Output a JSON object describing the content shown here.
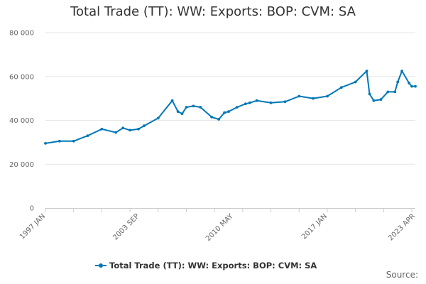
{
  "chart_data": {
    "type": "line",
    "title": "Total Trade (TT): WW: Exports: BOP: CVM: SA",
    "xlabel": "",
    "ylabel": "",
    "ylim": [
      0,
      80000
    ],
    "y_ticks": [
      0,
      20000,
      40000,
      60000,
      80000
    ],
    "y_tick_labels": [
      "0",
      "20 000",
      "40 000",
      "60 000",
      "80 000"
    ],
    "x_period_start": "1997 JAN",
    "x_period_end": "2023 APR",
    "x_tick_labels": [
      "1997 JAN",
      "2003 SEP",
      "2010 MAY",
      "2017 JAN",
      "2023 APR"
    ],
    "grid": true,
    "legend_position": "bottom-center",
    "series": [
      {
        "name": "Total Trade (TT): WW: Exports: BOP: CVM: SA",
        "color": "#0077b6",
        "x": [
          1997.0,
          1998.0,
          1999.0,
          2000.0,
          2001.0,
          2002.0,
          2002.5,
          2003.0,
          2003.6,
          2004.0,
          2005.0,
          2006.0,
          2006.4,
          2006.7,
          2007.0,
          2007.5,
          2008.0,
          2008.8,
          2009.3,
          2009.7,
          2010.0,
          2010.6,
          2011.2,
          2011.5,
          2012.0,
          2013.0,
          2014.0,
          2015.0,
          2016.0,
          2017.0,
          2018.0,
          2019.0,
          2019.8,
          2020.0,
          2020.3,
          2020.8,
          2021.3,
          2021.8,
          2022.0,
          2022.3,
          2022.8,
          2023.0,
          2023.25
        ],
        "values": [
          29500,
          30500,
          30500,
          33000,
          36000,
          34500,
          36500,
          35500,
          36000,
          37500,
          41000,
          49000,
          44000,
          43000,
          46000,
          46500,
          46000,
          41500,
          40500,
          43500,
          44000,
          46000,
          47500,
          48000,
          49000,
          48000,
          48500,
          51000,
          50000,
          51000,
          55000,
          57500,
          62500,
          52000,
          49000,
          49500,
          53000,
          53000,
          57500,
          62500,
          57000,
          55500,
          55500
        ]
      }
    ]
  },
  "footer": {
    "source_label": "Source:"
  }
}
